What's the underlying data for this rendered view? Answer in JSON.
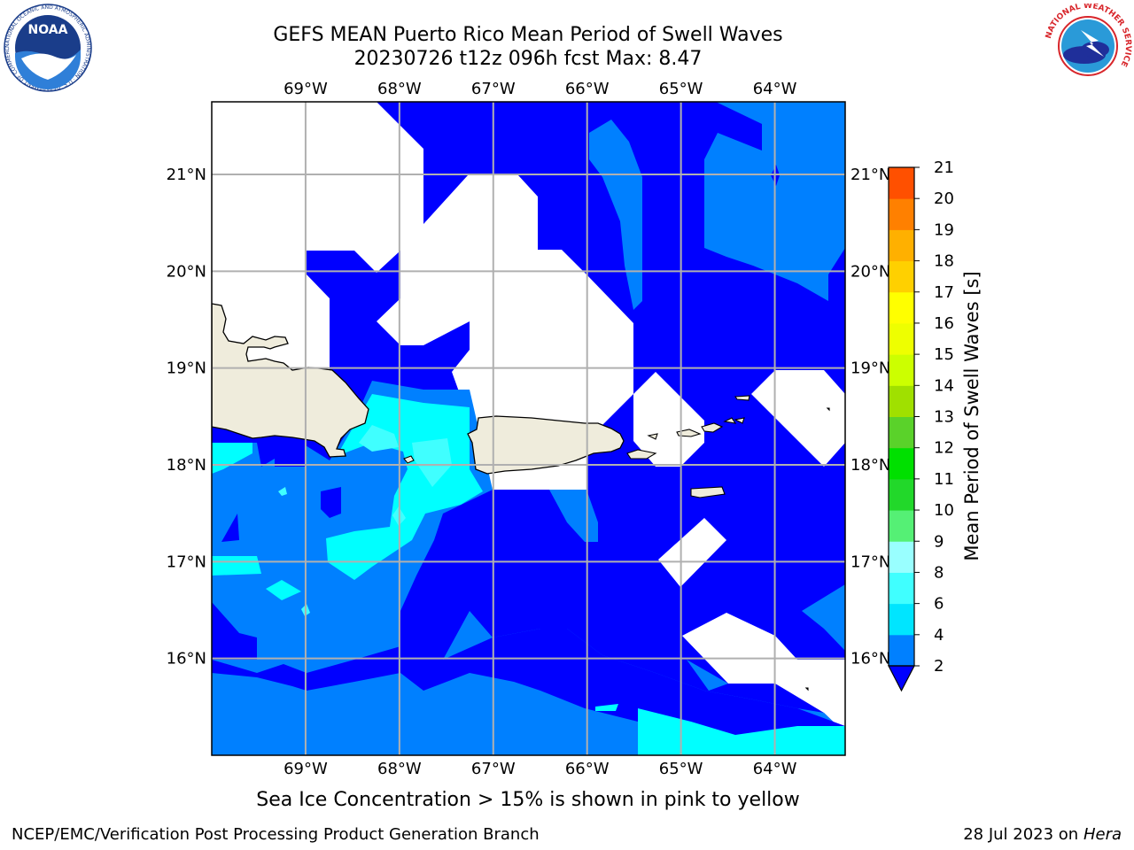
{
  "title_line1": "GEFS MEAN Puerto Rico Mean Period of Swell Waves",
  "title_line2": "20230726 t12z 096h fcst   Max: 8.47",
  "subtitle": "Sea Ice Concentration > 15% is shown in pink to yellow",
  "footer_left": "NCEP/EMC/Verification Post Processing Product Generation Branch",
  "footer_right_prefix": "28 Jul 2023 on ",
  "footer_right_machine": "Hera",
  "noaa_logo_text": "NOAA",
  "noaa_ring_text": "NATIONAL OCEANIC AND ATMOSPHERIC ADMINISTRATION · U.S. DEPARTMENT OF COMMERCE",
  "nws_ring_text": "NATIONAL WEATHER SERVICE",
  "map": {
    "lon_labels": [
      "69°W",
      "68°W",
      "67°W",
      "66°W",
      "65°W",
      "64°W"
    ],
    "lon_values": [
      -69,
      -68,
      -67,
      -66,
      -65,
      -64
    ],
    "lat_labels": [
      "21°N",
      "20°N",
      "19°N",
      "18°N",
      "17°N",
      "16°N"
    ],
    "lat_values": [
      21,
      20,
      19,
      18,
      17,
      16
    ],
    "lon_range": [
      -70.0,
      -63.25
    ],
    "lat_range": [
      15.0,
      21.75
    ],
    "land_color": "#efecdc",
    "grid_color": "#b0b0b0"
  },
  "colorbar": {
    "label": "Mean Period of Swell Waves [s]",
    "levels": [
      2,
      4,
      6,
      8,
      9,
      10,
      11,
      12,
      13,
      14,
      15,
      16,
      17,
      18,
      19,
      20,
      21
    ],
    "colors": [
      "#0080ff",
      "#00e5ff",
      "#40ffff",
      "#99ffff",
      "#55f075",
      "#22d82a",
      "#00e000",
      "#5ad22a",
      "#a0e000",
      "#ccff00",
      "#eeff00",
      "#ffff00",
      "#ffd000",
      "#ffb000",
      "#ff8000",
      "#ff5000",
      "#ff2000"
    ],
    "under_color": "#0000ff",
    "over_color": "#ff0000"
  }
}
